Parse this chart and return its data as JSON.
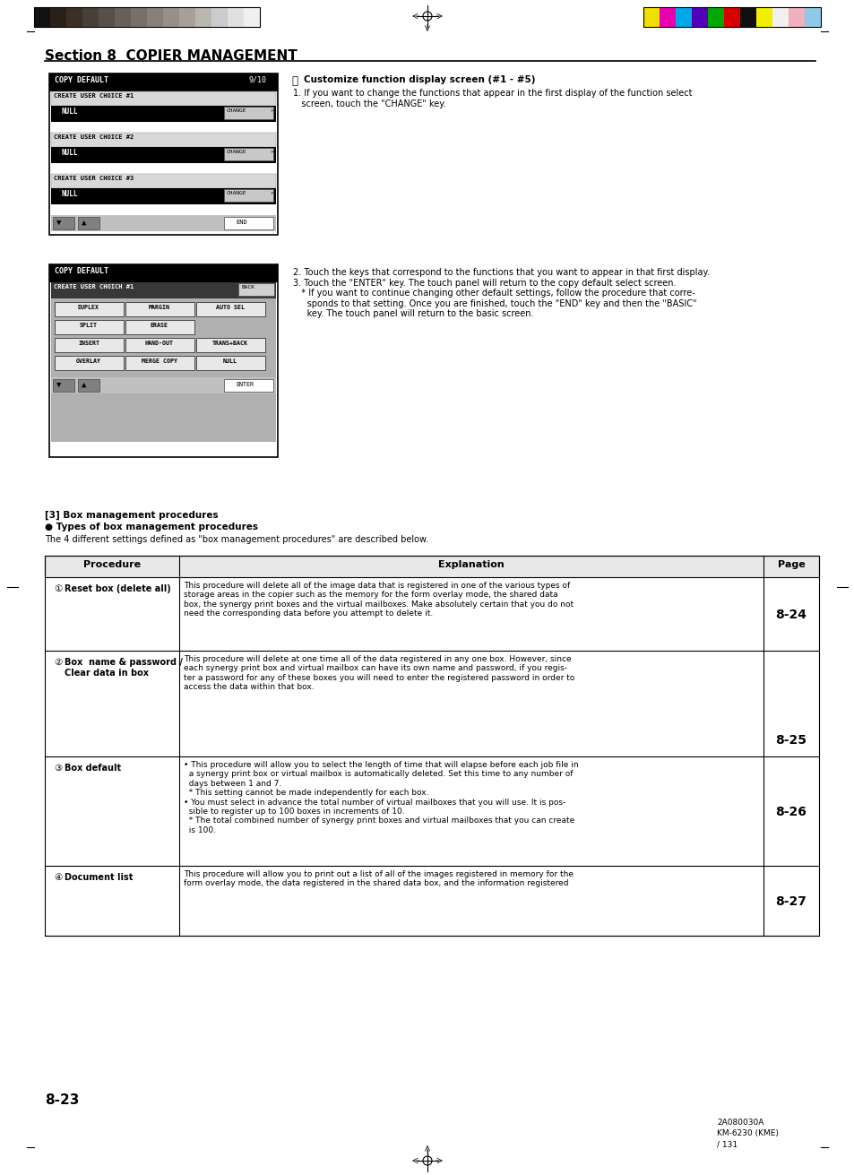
{
  "page_bg": "#ffffff",
  "section_title": "Section 8  COPIER MANAGEMENT",
  "header_color_bar_left": [
    "#111111",
    "#2a2018",
    "#3a3028",
    "#484038",
    "#585048",
    "#686058",
    "#787068",
    "#888078",
    "#989088",
    "#a8a098",
    "#b8b8b0",
    "#cccccc",
    "#e0e0e0",
    "#f0f0f0"
  ],
  "header_color_bar_right": [
    "#f0e000",
    "#e800b0",
    "#00a8e8",
    "#5000b8",
    "#00a800",
    "#d80000",
    "#101010",
    "#f0f000",
    "#f0f0f0",
    "#f0b0c0",
    "#90c8e8"
  ],
  "box_section_title": "[3] Box management procedures",
  "bullet_types_title": "Types of box management procedures",
  "types_subtitle": "The 4 different settings defined as \"box management procedures\" are described below.",
  "table_headers": [
    "Procedure",
    "Explanation",
    "Page"
  ],
  "table_rows": [
    {
      "num": "1",
      "procedure": "Reset box (delete all)",
      "explanation": "This procedure will delete all of the image data that is registered in one of the various types of\nstorage areas in the copier such as the memory for the form overlay mode, the shared data\nbox, the synergy print boxes and the virtual mailboxes. Make absolutely certain that you do not\nneed the corresponding data before you attempt to delete it.",
      "page": "8-24"
    },
    {
      "num": "2",
      "procedure": "Box  name & password /\nClear data in box",
      "explanation": "This procedure will delete at one time all of the data registered in any one box. However, since\neach synergy print box and virtual mailbox can have its own name and password, if you regis-\nter a password for any of these boxes you will need to enter the registered password in order to\naccess the data within that box.",
      "page": "8-25"
    },
    {
      "num": "3",
      "procedure": "Box default",
      "explanation": "• This procedure will allow you to select the length of time that will elapse before each job file in\n  a synergy print box or virtual mailbox is automatically deleted. Set this time to any number of\n  days between 1 and 7.\n  * This setting cannot be made independently for each box.\n• You must select in advance the total number of virtual mailboxes that you will use. It is pos-\n  sible to register up to 100 boxes in increments of 10.\n  * The total combined number of synergy print boxes and virtual mailboxes that you can create\n  is 100.",
      "page": "8-26"
    },
    {
      "num": "4",
      "procedure": "Document list",
      "explanation": "This procedure will allow you to print out a list of all of the images registered in memory for the\nform overlay mode, the data registered in the shared data box, and the information registered",
      "page": "8-27"
    }
  ],
  "page_number": "8-23",
  "footer_right1": "2A080030A",
  "footer_right2": "KM-6230 (KME)",
  "footer_right3": "/ 131",
  "customize_title": "Customize function display screen (#1 - #5)",
  "customize_text1": "1. If you want to change the functions that appear in the first display of the function select\n   screen, touch the \"CHANGE\" key.",
  "customize_text2": "2. Touch the keys that correspond to the functions that you want to appear in that first display.\n3. Touch the \"ENTER\" key. The touch panel will return to the copy default select screen.\n   * If you want to continue changing other default settings, follow the procedure that corre-\n     sponds to that setting. Once you are finished, touch the \"END\" key and then the \"BASIC\"\n     key. The touch panel will return to the basic screen."
}
